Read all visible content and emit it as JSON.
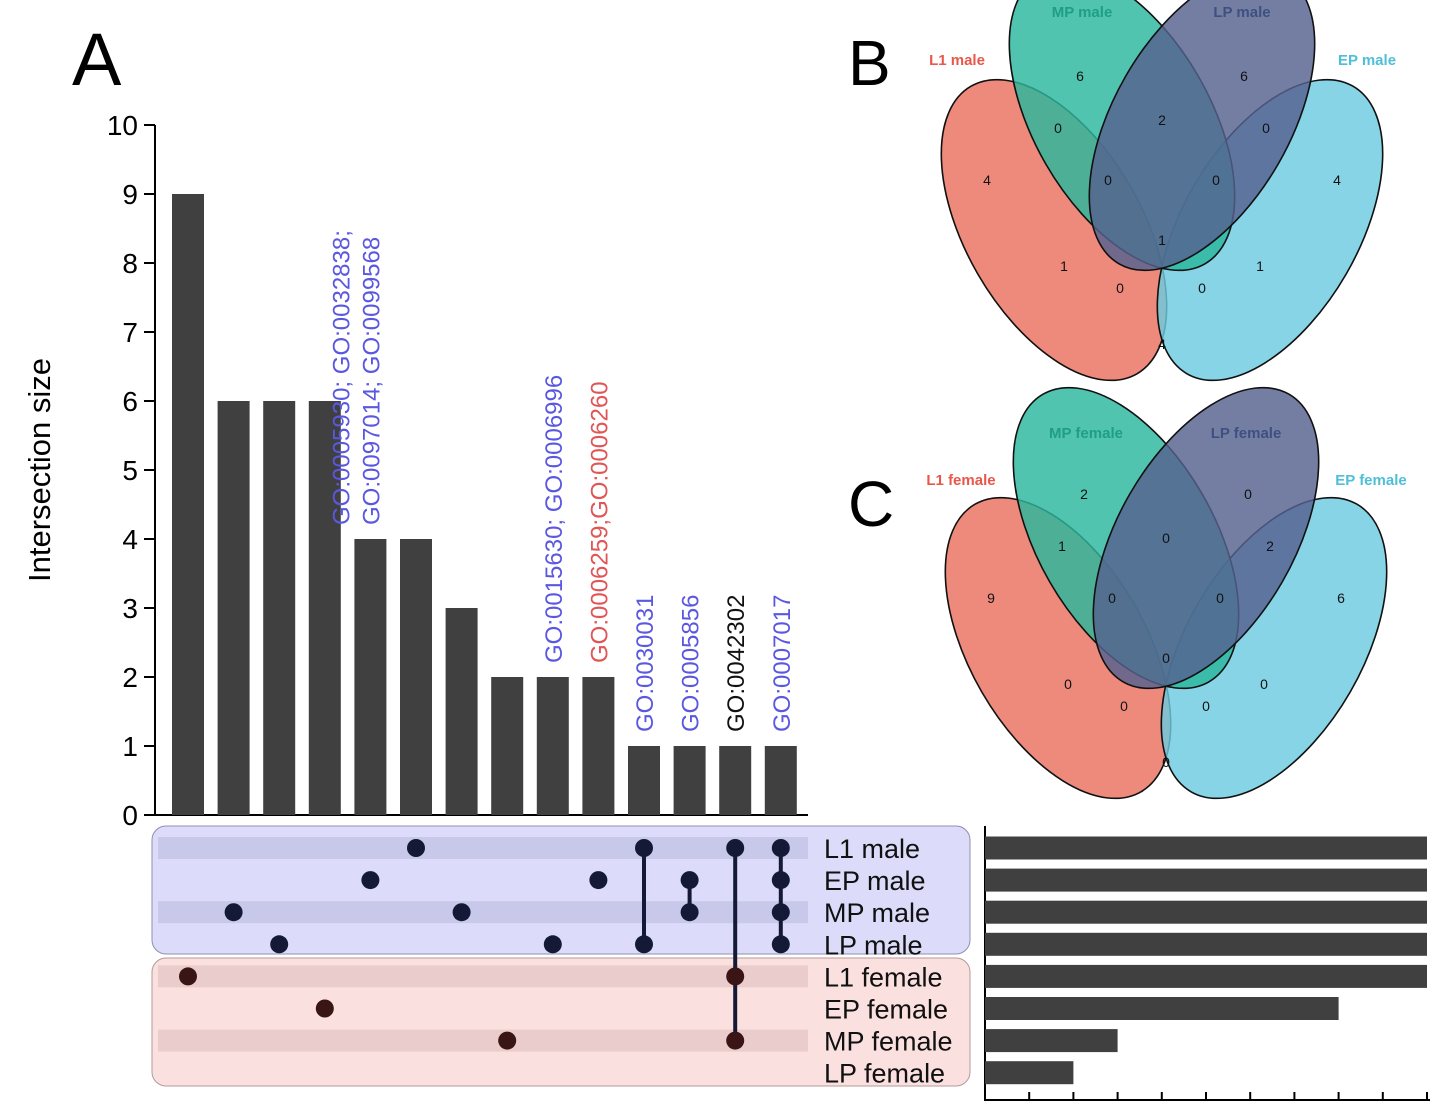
{
  "panels": {
    "A": {
      "label": "A"
    },
    "B": {
      "label": "B"
    },
    "C": {
      "label": "C"
    }
  },
  "colors": {
    "bar": "#404040",
    "dot_male": "#141a36",
    "dot_female": "#3a1515",
    "male_box": "#dcdcfa",
    "male_stripe": "#c8c8ea",
    "female_box": "#fbe0e0",
    "female_stripe": "#ebcccc",
    "label_blue": "#5a57e0",
    "label_red": "#e05555",
    "label_black": "#111111",
    "venn_L1": "#e9705f",
    "venn_MP": "#2bb79e",
    "venn_LP": "#55628f",
    "venn_EP": "#6ccbe0",
    "venn_title_L1": "#e8574a",
    "venn_title_MP": "#1f9e85",
    "venn_title_LP": "#3e5080",
    "venn_title_EP": "#4fbfd8"
  },
  "chart_data": [
    {
      "type": "bar",
      "title": "",
      "ylabel": "Intersection size",
      "ylim": [
        0,
        10
      ],
      "yticks": [
        "0",
        "1",
        "2",
        "3",
        "4",
        "5",
        "6",
        "7",
        "8",
        "9",
        "10"
      ],
      "values": [
        9,
        6,
        6,
        6,
        4,
        4,
        3,
        2,
        2,
        2,
        1,
        1,
        1,
        1
      ],
      "bar_annotations": [
        {
          "bar": 5,
          "lines": [
            "GO:0005930; GO:0032838;",
            "GO:0097014; GO:0099568"
          ],
          "color": "blue"
        },
        {
          "bar": 9,
          "lines": [
            "GO:0015630; GO:0006996"
          ],
          "color": "blue"
        },
        {
          "bar": 10,
          "lines": [
            "GO:0006259;GO:0006260"
          ],
          "color": "red"
        },
        {
          "bar": 11,
          "lines": [
            "GO:0030031"
          ],
          "color": "blue"
        },
        {
          "bar": 12,
          "lines": [
            "GO:0005856"
          ],
          "color": "blue"
        },
        {
          "bar": 13,
          "lines": [
            "GO:0042302"
          ],
          "color": "black"
        },
        {
          "bar": 14,
          "lines": [
            "GO:0007017"
          ],
          "color": "blue"
        }
      ],
      "sets": [
        "L1 male",
        "EP male",
        "MP male",
        "LP male",
        "L1 female",
        "EP female",
        "MP female",
        "LP female"
      ],
      "set_groups": [
        "male",
        "male",
        "male",
        "male",
        "female",
        "female",
        "female",
        "female"
      ],
      "membership": [
        [
          4
        ],
        [
          2
        ],
        [
          3
        ],
        [
          5
        ],
        [
          1
        ],
        [
          0
        ],
        [
          2
        ],
        [
          6
        ],
        [
          3
        ],
        [
          1
        ],
        [
          0,
          3
        ],
        [
          1,
          2
        ],
        [
          0,
          4,
          6
        ],
        [
          0,
          1,
          2,
          3
        ]
      ],
      "set_sizes": [
        10,
        10,
        10,
        10,
        10,
        8,
        3,
        2
      ],
      "set_size_xlim": [
        0,
        10
      ]
    },
    {
      "type": "venn",
      "sets": [
        "L1 male",
        "MP male",
        "LP male",
        "EP male"
      ],
      "counts": [
        4,
        6,
        6,
        4,
        0,
        2,
        0,
        0,
        0,
        1,
        1,
        1,
        0,
        0,
        4
      ]
    },
    {
      "type": "venn",
      "sets": [
        "L1 female",
        "MP female",
        "LP female",
        "EP female"
      ],
      "counts": [
        9,
        2,
        0,
        6,
        1,
        0,
        2,
        0,
        0,
        0,
        0,
        0,
        0,
        0,
        0
      ]
    }
  ]
}
